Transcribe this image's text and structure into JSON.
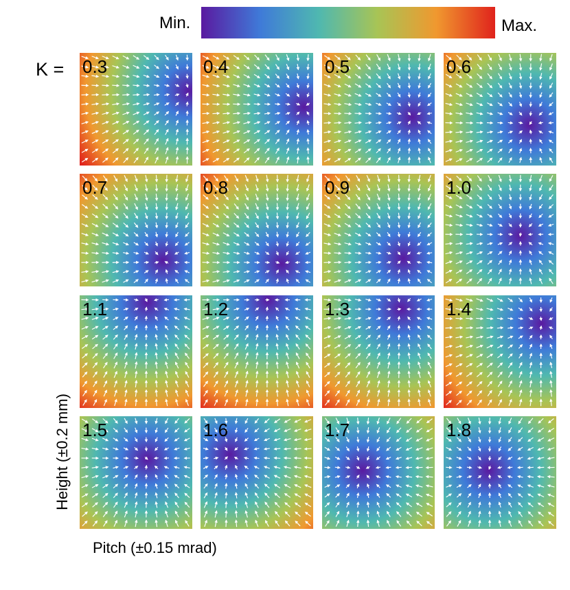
{
  "colorbar": {
    "min_label": "Min.",
    "max_label": "Max.",
    "colors": [
      "#5a1aa0",
      "#3f7ad8",
      "#4fb8b0",
      "#a8c455",
      "#f0982f",
      "#e0231c"
    ]
  },
  "k_prefix": "K =",
  "axes": {
    "xlabel": "Pitch (±0.15 mrad)",
    "ylabel": "Height (±0.2 mm)"
  },
  "chart_data": {
    "type": "heatmap",
    "layout": "4x4 small multiples",
    "values_shown": "normalized scalar field (Min. to Max.) with white gradient arrows",
    "panels": [
      {
        "k": "0.3",
        "min_at": [
          0.97,
          0.34
        ]
      },
      {
        "k": "0.4",
        "min_at": [
          0.92,
          0.48
        ]
      },
      {
        "k": "0.5",
        "min_at": [
          0.8,
          0.57
        ]
      },
      {
        "k": "0.6",
        "min_at": [
          0.76,
          0.64
        ]
      },
      {
        "k": "0.7",
        "min_at": [
          0.74,
          0.77
        ]
      },
      {
        "k": "0.8",
        "min_at": [
          0.72,
          0.8
        ]
      },
      {
        "k": "0.9",
        "min_at": [
          0.72,
          0.75
        ]
      },
      {
        "k": "1.0",
        "min_at": [
          0.68,
          0.55
        ]
      },
      {
        "k": "1.1",
        "min_at": [
          0.6,
          0.06
        ]
      },
      {
        "k": "1.2",
        "min_at": [
          0.6,
          0.04
        ]
      },
      {
        "k": "1.3",
        "min_at": [
          0.7,
          0.12
        ]
      },
      {
        "k": "1.4",
        "min_at": [
          0.87,
          0.25
        ]
      },
      {
        "k": "1.5",
        "min_at": [
          0.6,
          0.38
        ]
      },
      {
        "k": "1.6",
        "min_at": [
          0.26,
          0.34
        ]
      },
      {
        "k": "1.7",
        "min_at": [
          0.36,
          0.48
        ]
      },
      {
        "k": "1.8",
        "min_at": [
          0.4,
          0.48
        ]
      }
    ]
  }
}
